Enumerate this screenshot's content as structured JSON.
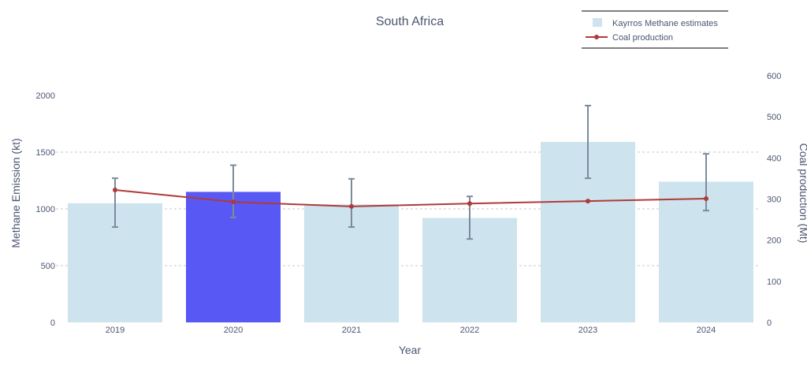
{
  "chart_data": {
    "type": "bar",
    "title": "South Africa",
    "xlabel": "Year",
    "ylabel": "Methane Emission (kt)",
    "y2label": "Coal production (Mt)",
    "ylim": [
      0,
      2000
    ],
    "y2lim": [
      0,
      600
    ],
    "yticks": [
      0,
      500,
      1000,
      1500,
      2000
    ],
    "y2ticks": [
      0,
      100,
      200,
      300,
      400,
      500,
      600
    ],
    "grid": true,
    "legend_position": "top-right",
    "categories": [
      "2019",
      "2020",
      "2021",
      "2022",
      "2023",
      "2024"
    ],
    "highlight_index": 1,
    "colors": {
      "bar": "#cde3ee",
      "highlight": "#5858f5",
      "line": "#b03a3a",
      "error": "#7d8a9c",
      "text": "#4a5570",
      "grid": "#c8c8c8"
    },
    "series": [
      {
        "name": "Kayrros Methane estimates",
        "type": "bar",
        "axis": "left",
        "values": [
          1050,
          1150,
          1040,
          920,
          1590,
          1240
        ],
        "error_low": [
          840,
          925,
          840,
          735,
          1270,
          985
        ],
        "error_high": [
          1270,
          1385,
          1265,
          1110,
          1910,
          1485
        ]
      },
      {
        "name": "Coal production",
        "type": "line",
        "axis": "right",
        "values": [
          322,
          293,
          282,
          289,
          295,
          301
        ]
      }
    ]
  }
}
